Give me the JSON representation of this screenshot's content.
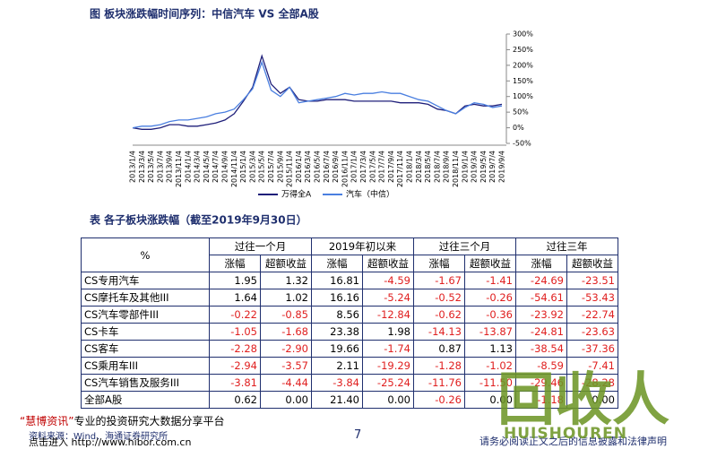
{
  "chart": {
    "type": "line",
    "title": "图 板块涨跌幅时间序列：中信汽车 VS 全部A股",
    "categories": [
      "2013/1/4",
      "2013/3/4",
      "2013/5/4",
      "2013/7/4",
      "2013/9/4",
      "2013/11/4",
      "2014/1/4",
      "2014/3/4",
      "2014/5/4",
      "2014/7/4",
      "2014/9/4",
      "2014/11/4",
      "2015/1/4",
      "2015/3/4",
      "2015/5/4",
      "2015/7/4",
      "2015/9/4",
      "2015/11/4",
      "2016/1/4",
      "2016/3/4",
      "2016/5/4",
      "2016/7/4",
      "2016/9/4",
      "2016/11/4",
      "2017/1/4",
      "2017/3/4",
      "2017/5/4",
      "2017/7/4",
      "2017/9/4",
      "2017/11/4",
      "2018/1/4",
      "2018/3/4",
      "2018/5/4",
      "2018/7/4",
      "2018/9/4",
      "2018/11/4",
      "2019/1/4",
      "2019/3/4",
      "2019/5/4",
      "2019/7/4",
      "2019/9/4"
    ],
    "series": [
      {
        "name": "万得全A",
        "color": "#1f1f7a",
        "values": [
          0,
          -5,
          -5,
          0,
          10,
          10,
          5,
          5,
          10,
          15,
          25,
          45,
          85,
          130,
          230,
          140,
          110,
          130,
          90,
          85,
          85,
          90,
          90,
          90,
          85,
          85,
          85,
          85,
          85,
          80,
          80,
          80,
          75,
          60,
          55,
          45,
          70,
          75,
          70,
          70,
          75
        ]
      },
      {
        "name": "汽车（中信）",
        "color": "#4a7fe0",
        "values": [
          0,
          5,
          5,
          10,
          20,
          25,
          25,
          30,
          35,
          45,
          50,
          60,
          90,
          125,
          210,
          120,
          100,
          130,
          80,
          85,
          90,
          95,
          100,
          110,
          105,
          110,
          110,
          115,
          110,
          110,
          100,
          90,
          85,
          70,
          55,
          45,
          65,
          80,
          75,
          65,
          70
        ]
      }
    ],
    "ylim": [
      -50,
      300
    ],
    "yticks": [
      {
        "value": -50,
        "label": "-50%"
      },
      {
        "value": 0,
        "label": "0%"
      },
      {
        "value": 50,
        "label": "50%"
      },
      {
        "value": 100,
        "label": "100%"
      },
      {
        "value": 150,
        "label": "150%"
      },
      {
        "value": 200,
        "label": "200%"
      },
      {
        "value": 250,
        "label": "250%"
      },
      {
        "value": 300,
        "label": "300%"
      }
    ]
  },
  "table": {
    "title": "表 各子板块涨跌幅（截至2019年9月30日）",
    "corner": "%",
    "groups": [
      "过往一个月",
      "2019年初以来",
      "过往三个月",
      "过往三年"
    ],
    "subheaders": [
      "涨幅",
      "超额收益"
    ],
    "rows": [
      [
        "CS专用汽车",
        "1.95",
        "1.32",
        "16.81",
        "-4.59",
        "-1.67",
        "-1.41",
        "-24.69",
        "-23.51"
      ],
      [
        "CS摩托车及其他III",
        "1.64",
        "1.02",
        "16.16",
        "-5.24",
        "-0.52",
        "-0.26",
        "-54.61",
        "-53.43"
      ],
      [
        "CS汽车零部件III",
        "-0.22",
        "-0.85",
        "8.56",
        "-12.84",
        "-0.62",
        "-0.36",
        "-23.92",
        "-22.74"
      ],
      [
        "CS卡车",
        "-1.05",
        "-1.68",
        "23.38",
        "1.98",
        "-14.13",
        "-13.87",
        "-24.81",
        "-23.63"
      ],
      [
        "CS客车",
        "-2.28",
        "-2.90",
        "19.66",
        "-1.74",
        "0.87",
        "1.13",
        "-38.54",
        "-37.36"
      ],
      [
        "CS乘用车III",
        "-2.94",
        "-3.57",
        "2.11",
        "-19.29",
        "-1.28",
        "-1.02",
        "-8.59",
        "-7.41"
      ],
      [
        "CS汽车销售及服务III",
        "-3.81",
        "-4.44",
        "-3.84",
        "-25.24",
        "-11.76",
        "-11.50",
        "-29.46",
        "-28.28"
      ],
      [
        "全部A股",
        "0.62",
        "0.00",
        "21.40",
        "0.00",
        "-0.26",
        "0.00",
        "-1.18",
        "0.00"
      ]
    ]
  },
  "footer": {
    "brand": "“慧博资讯”",
    "slogan": "专业的投资研究大数据分享平台",
    "link": "点击进入 http://www.hibor.com.cn",
    "source": "资料来源：Wind、海通证券研究所",
    "page": "7",
    "disclaimer": "请务必阅读正文之后的信息披露和法律声明"
  },
  "watermark": {
    "logo": "回收人",
    "text": "HUISHOUREN"
  }
}
